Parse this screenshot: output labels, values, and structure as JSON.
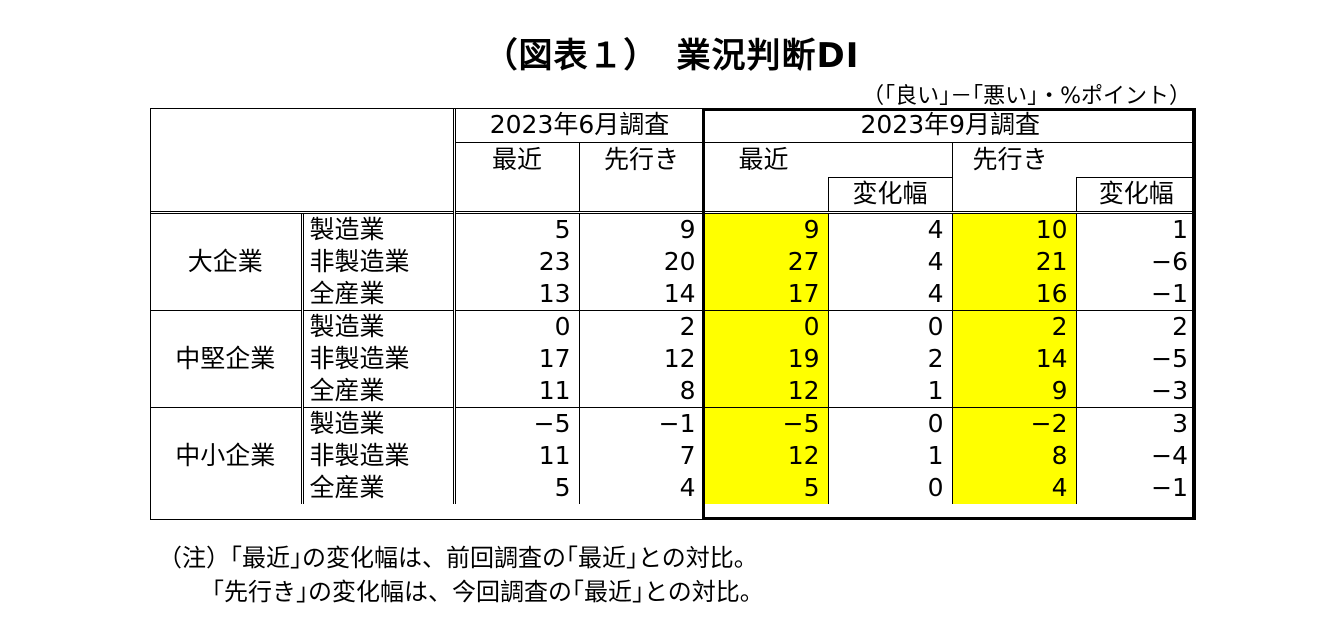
{
  "title": "（図表１）　業況判断DI",
  "unit": "（｢良い｣－｢悪い｣・%ポイント）",
  "header": {
    "june": "2023年6月調査",
    "sept": "2023年9月調査",
    "recent": "最近",
    "forecast": "先行き",
    "change": "変化幅"
  },
  "groups": [
    {
      "name": "大企業",
      "rows": [
        {
          "sector": "製造業",
          "jun_recent": "5",
          "jun_forecast": "9",
          "sep_recent": "9",
          "sep_recent_change": "4",
          "sep_forecast": "10",
          "sep_forecast_change": "1"
        },
        {
          "sector": "非製造業",
          "jun_recent": "23",
          "jun_forecast": "20",
          "sep_recent": "27",
          "sep_recent_change": "4",
          "sep_forecast": "21",
          "sep_forecast_change": "−6"
        },
        {
          "sector": "全産業",
          "jun_recent": "13",
          "jun_forecast": "14",
          "sep_recent": "17",
          "sep_recent_change": "4",
          "sep_forecast": "16",
          "sep_forecast_change": "−1"
        }
      ]
    },
    {
      "name": "中堅企業",
      "rows": [
        {
          "sector": "製造業",
          "jun_recent": "0",
          "jun_forecast": "2",
          "sep_recent": "0",
          "sep_recent_change": "0",
          "sep_forecast": "2",
          "sep_forecast_change": "2"
        },
        {
          "sector": "非製造業",
          "jun_recent": "17",
          "jun_forecast": "12",
          "sep_recent": "19",
          "sep_recent_change": "2",
          "sep_forecast": "14",
          "sep_forecast_change": "−5"
        },
        {
          "sector": "全産業",
          "jun_recent": "11",
          "jun_forecast": "8",
          "sep_recent": "12",
          "sep_recent_change": "1",
          "sep_forecast": "9",
          "sep_forecast_change": "−3"
        }
      ]
    },
    {
      "name": "中小企業",
      "rows": [
        {
          "sector": "製造業",
          "jun_recent": "−5",
          "jun_forecast": "−1",
          "sep_recent": "−5",
          "sep_recent_change": "0",
          "sep_forecast": "−2",
          "sep_forecast_change": "3"
        },
        {
          "sector": "非製造業",
          "jun_recent": "11",
          "jun_forecast": "7",
          "sep_recent": "12",
          "sep_recent_change": "1",
          "sep_forecast": "8",
          "sep_forecast_change": "−4"
        },
        {
          "sector": "全産業",
          "jun_recent": "5",
          "jun_forecast": "4",
          "sep_recent": "5",
          "sep_recent_change": "0",
          "sep_forecast": "4",
          "sep_forecast_change": "−1"
        }
      ]
    }
  ],
  "notes": [
    "（注）｢最近｣の変化幅は、前回調査の｢最近｣との対比。",
    "｢先行き｣の変化幅は、今回調査の｢最近｣との対比。"
  ],
  "colors": {
    "highlight": "#ffff00"
  }
}
